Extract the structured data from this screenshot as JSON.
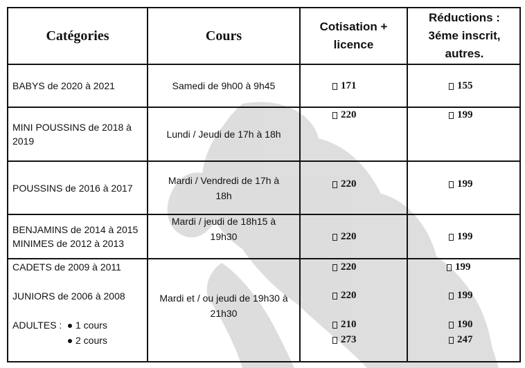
{
  "headers": {
    "categories": "Catégories",
    "courses": "Cours",
    "price_line1": "Cotisation +",
    "price_line2": "licence",
    "reduction_line1": "Réductions :",
    "reduction_line2": "3éme inscrit,",
    "reduction_line3": "autres."
  },
  "rows": {
    "babys": {
      "category": "BABYS de 2020 à 2021",
      "course": "Samedi de 9h00 à 9h45",
      "price": "171",
      "reduction": "155"
    },
    "mini": {
      "category_line1": "MINI POUSSINS de 2018 à",
      "category_line2": "2019",
      "course": "Lundi / Jeudi de 17h à 18h",
      "price": "220",
      "reduction": "199"
    },
    "poussins": {
      "category": "POUSSINS de 2016 à 2017",
      "course_line1": "Mardi / Vendredi de 17h à",
      "course_line2": "18h",
      "price": "220",
      "reduction": "199"
    },
    "benjamins": {
      "category_line1": "BENJAMINS de 2014 à 2015",
      "category_line2": "MINIMES de 2012 à 2013",
      "course_line1": "Mardi / jeudi de 18h15 à",
      "course_line2": "19h30",
      "price": "220",
      "reduction": "199"
    },
    "cadets": {
      "category": "CADETS de 2009 à 2011",
      "price": "220",
      "reduction": "199"
    },
    "juniors": {
      "category": "JUNIORS de 2006 à 2008",
      "price": "220",
      "reduction": "199"
    },
    "adultes": {
      "label": "ADULTES :",
      "option1": "1 cours",
      "option2": "2 cours",
      "price1": "210",
      "price2": "273",
      "reduction1": "190",
      "reduction2": "247"
    },
    "senior_course_line1": "Mardi et / ou jeudi de 19h30 à",
    "senior_course_line2": "21h30"
  }
}
